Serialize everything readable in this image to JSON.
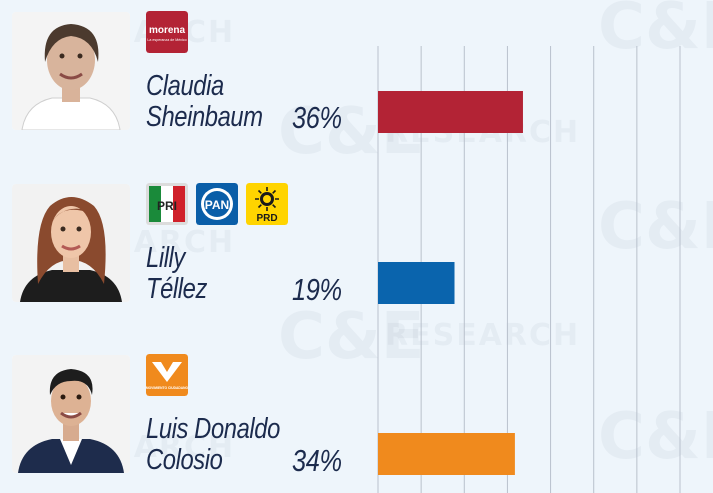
{
  "chart_data": {
    "type": "bar",
    "orientation": "horizontal",
    "categories": [
      "Claudia Sheinbaum",
      "Lilly Téllez",
      "Luis Donaldo Colosio"
    ],
    "values": [
      36,
      19,
      34
    ],
    "value_labels": [
      "36%",
      "19%",
      "34%"
    ],
    "colors": [
      "#b32335",
      "#0a64ad",
      "#f08a1d"
    ],
    "xlim": [
      0,
      75
    ],
    "grid": true
  },
  "watermark": {
    "brand": "C&E",
    "sub": "RESEARCH"
  },
  "candidates": [
    {
      "first": "Claudia",
      "last": "Sheinbaum",
      "pct": "36%",
      "parties": [
        {
          "name": "morena",
          "tagline": "La esperanza de México",
          "color": "#b32335",
          "icon": "morena-logo"
        }
      ]
    },
    {
      "first": "Lilly",
      "last": "Téllez",
      "pct": "19%",
      "parties": [
        {
          "name": "PRI",
          "icon": "pri-logo"
        },
        {
          "name": "PAN",
          "icon": "pan-logo",
          "color": "#0a5ea8"
        },
        {
          "name": "PRD",
          "icon": "prd-logo",
          "color": "#ffd400"
        }
      ]
    },
    {
      "first": "Luis Donaldo",
      "last": "Colosio",
      "pct": "34%",
      "parties": [
        {
          "name": "MOVIMIENTO CIUDADANO",
          "icon": "movimiento-ciudadano-logo",
          "color": "#f08a1d"
        }
      ]
    }
  ]
}
